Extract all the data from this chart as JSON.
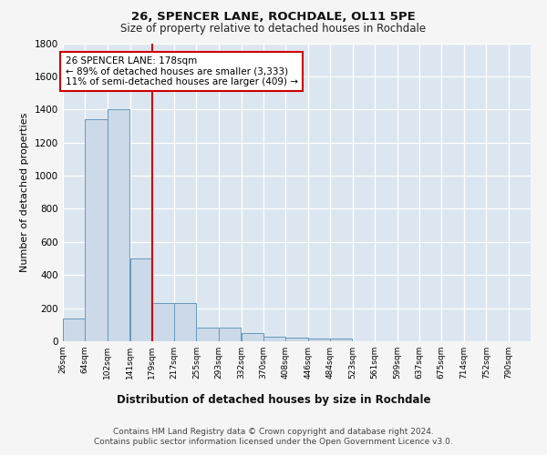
{
  "title1": "26, SPENCER LANE, ROCHDALE, OL11 5PE",
  "title2": "Size of property relative to detached houses in Rochdale",
  "xlabel": "Distribution of detached houses by size in Rochdale",
  "ylabel": "Number of detached properties",
  "bin_labels": [
    "26sqm",
    "64sqm",
    "102sqm",
    "141sqm",
    "179sqm",
    "217sqm",
    "255sqm",
    "293sqm",
    "332sqm",
    "370sqm",
    "408sqm",
    "446sqm",
    "484sqm",
    "523sqm",
    "561sqm",
    "599sqm",
    "637sqm",
    "675sqm",
    "714sqm",
    "752sqm",
    "790sqm"
  ],
  "bin_edges": [
    26,
    64,
    102,
    141,
    179,
    217,
    255,
    293,
    332,
    370,
    408,
    446,
    484,
    523,
    561,
    599,
    637,
    675,
    714,
    752,
    790
  ],
  "bar_heights": [
    140,
    1340,
    1400,
    500,
    230,
    230,
    85,
    85,
    50,
    30,
    20,
    15,
    15,
    0,
    0,
    0,
    0,
    0,
    0,
    0,
    0
  ],
  "bar_color": "#ccd9e8",
  "bar_edge_color": "#6699bb",
  "vline_x": 179,
  "vline_color": "#cc0000",
  "annotation_line1": "26 SPENCER LANE: 178sqm",
  "annotation_line2": "← 89% of detached houses are smaller (3,333)",
  "annotation_line3": "11% of semi-detached houses are larger (409) →",
  "annotation_box_color": "#ffffff",
  "annotation_box_edge": "#cc0000",
  "ylim": [
    0,
    1800
  ],
  "yticks": [
    0,
    200,
    400,
    600,
    800,
    1000,
    1200,
    1400,
    1600,
    1800
  ],
  "background_color": "#dce6f0",
  "grid_color": "#ffffff",
  "fig_bg": "#f5f5f5",
  "footer1": "Contains HM Land Registry data © Crown copyright and database right 2024.",
  "footer2": "Contains public sector information licensed under the Open Government Licence v3.0."
}
